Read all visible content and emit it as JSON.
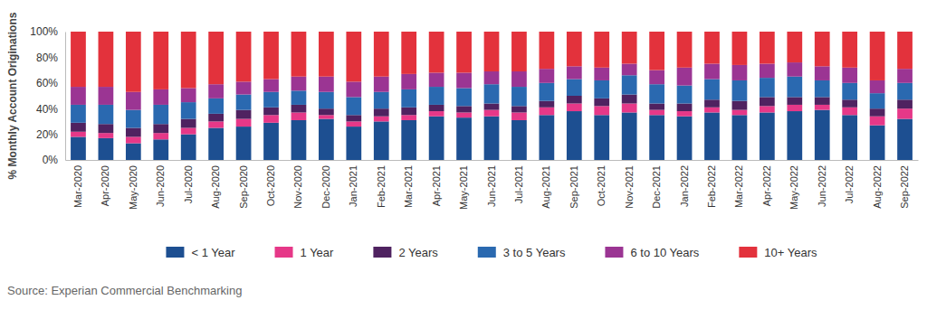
{
  "chart_data": {
    "type": "bar",
    "stacked": true,
    "legend": "bottom",
    "y_label": "% Monthly Account Originations",
    "source": "Source: Experian Commercial Benchmarking",
    "categories": [
      "Mar-2020",
      "Apr-2020",
      "May-2020",
      "Jun-2020",
      "Jul-2020",
      "Aug-2020",
      "Sep-2020",
      "Oct-2020",
      "Nov-2020",
      "Dec-2020",
      "Jan-2021",
      "Feb-2021",
      "Mar-2021",
      "Apr-2021",
      "May-2021",
      "Jun-2021",
      "Jul-2021",
      "Aug-2021",
      "Sep-2021",
      "Oct-2021",
      "Nov-2021",
      "Dec-2021",
      "Jan-2022",
      "Feb-2022",
      "Mar-2022",
      "Apr-2022",
      "May-2022",
      "Jun-2022",
      "Jul-2022",
      "Aug-2022",
      "Sep-2022"
    ],
    "series": [
      {
        "name": "< 1 Year",
        "color": "#1d4f91",
        "values": [
          18,
          17,
          13,
          16,
          20,
          25,
          26,
          29,
          31,
          32,
          26,
          30,
          31,
          34,
          33,
          34,
          31,
          35,
          38,
          35,
          37,
          35,
          34,
          37,
          35,
          37,
          38,
          39,
          35,
          27,
          32
        ]
      },
      {
        "name": "1 Year",
        "color": "#e63888",
        "values": [
          4,
          4,
          5,
          5,
          5,
          5,
          6,
          6,
          6,
          3,
          4,
          4,
          4,
          4,
          4,
          5,
          6,
          6,
          6,
          7,
          7,
          4,
          4,
          4,
          4,
          5,
          5,
          4,
          6,
          7,
          8
        ]
      },
      {
        "name": "2 Years",
        "color": "#4f2260",
        "values": [
          7,
          7,
          7,
          7,
          7,
          6,
          7,
          6,
          6,
          5,
          5,
          6,
          6,
          5,
          5,
          5,
          5,
          5,
          6,
          6,
          7,
          5,
          6,
          6,
          7,
          7,
          6,
          6,
          6,
          6,
          7
        ]
      },
      {
        "name": "3 to 5 Years",
        "color": "#2a69b0",
        "values": [
          14,
          15,
          14,
          15,
          13,
          12,
          12,
          12,
          11,
          13,
          14,
          13,
          14,
          14,
          14,
          15,
          15,
          14,
          13,
          14,
          15,
          15,
          14,
          16,
          16,
          15,
          16,
          13,
          13,
          12,
          13
        ]
      },
      {
        "name": "6 to 10 Years",
        "color": "#9b3593",
        "values": [
          14,
          14,
          14,
          12,
          11,
          11,
          10,
          10,
          11,
          12,
          12,
          12,
          12,
          11,
          12,
          10,
          12,
          11,
          10,
          10,
          9,
          11,
          14,
          12,
          12,
          11,
          11,
          11,
          12,
          10,
          11
        ]
      },
      {
        "name": "10+ Years",
        "color": "#e3323c",
        "values": [
          43,
          43,
          47,
          45,
          44,
          41,
          39,
          37,
          35,
          35,
          39,
          35,
          33,
          32,
          32,
          31,
          31,
          29,
          27,
          28,
          25,
          30,
          28,
          25,
          26,
          25,
          24,
          27,
          28,
          38,
          29
        ]
      }
    ],
    "ylim": [
      0,
      100
    ],
    "yticks": [
      {
        "value": 0,
        "label": "0%"
      },
      {
        "value": 20,
        "label": "20%"
      },
      {
        "value": 40,
        "label": "40%"
      },
      {
        "value": 60,
        "label": "60%"
      },
      {
        "value": 80,
        "label": "80%"
      },
      {
        "value": 100,
        "label": "100%"
      }
    ]
  }
}
